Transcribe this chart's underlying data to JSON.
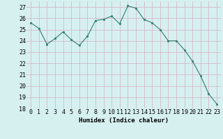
{
  "x": [
    0,
    1,
    2,
    3,
    4,
    5,
    6,
    7,
    8,
    9,
    10,
    11,
    12,
    13,
    14,
    15,
    16,
    17,
    18,
    19,
    20,
    21,
    22,
    23
  ],
  "y": [
    25.6,
    25.1,
    23.7,
    24.2,
    24.8,
    24.1,
    23.6,
    24.4,
    25.8,
    25.9,
    26.2,
    25.5,
    27.1,
    26.9,
    25.9,
    25.6,
    25.0,
    24.0,
    24.0,
    23.2,
    22.2,
    20.9,
    19.3,
    18.4
  ],
  "xlabel": "Humidex (Indice chaleur)",
  "ylim": [
    18,
    27.5
  ],
  "yticks": [
    18,
    19,
    20,
    21,
    22,
    23,
    24,
    25,
    26,
    27
  ],
  "xticks": [
    0,
    1,
    2,
    3,
    4,
    5,
    6,
    7,
    8,
    9,
    10,
    11,
    12,
    13,
    14,
    15,
    16,
    17,
    18,
    19,
    20,
    21,
    22,
    23
  ],
  "line_color": "#2e7d6e",
  "marker_color": "#2e7d6e",
  "bg_color": "#d6f0f0",
  "grid_color": "#c8e0dc",
  "axis_fontsize": 6.5,
  "tick_fontsize": 6.0
}
